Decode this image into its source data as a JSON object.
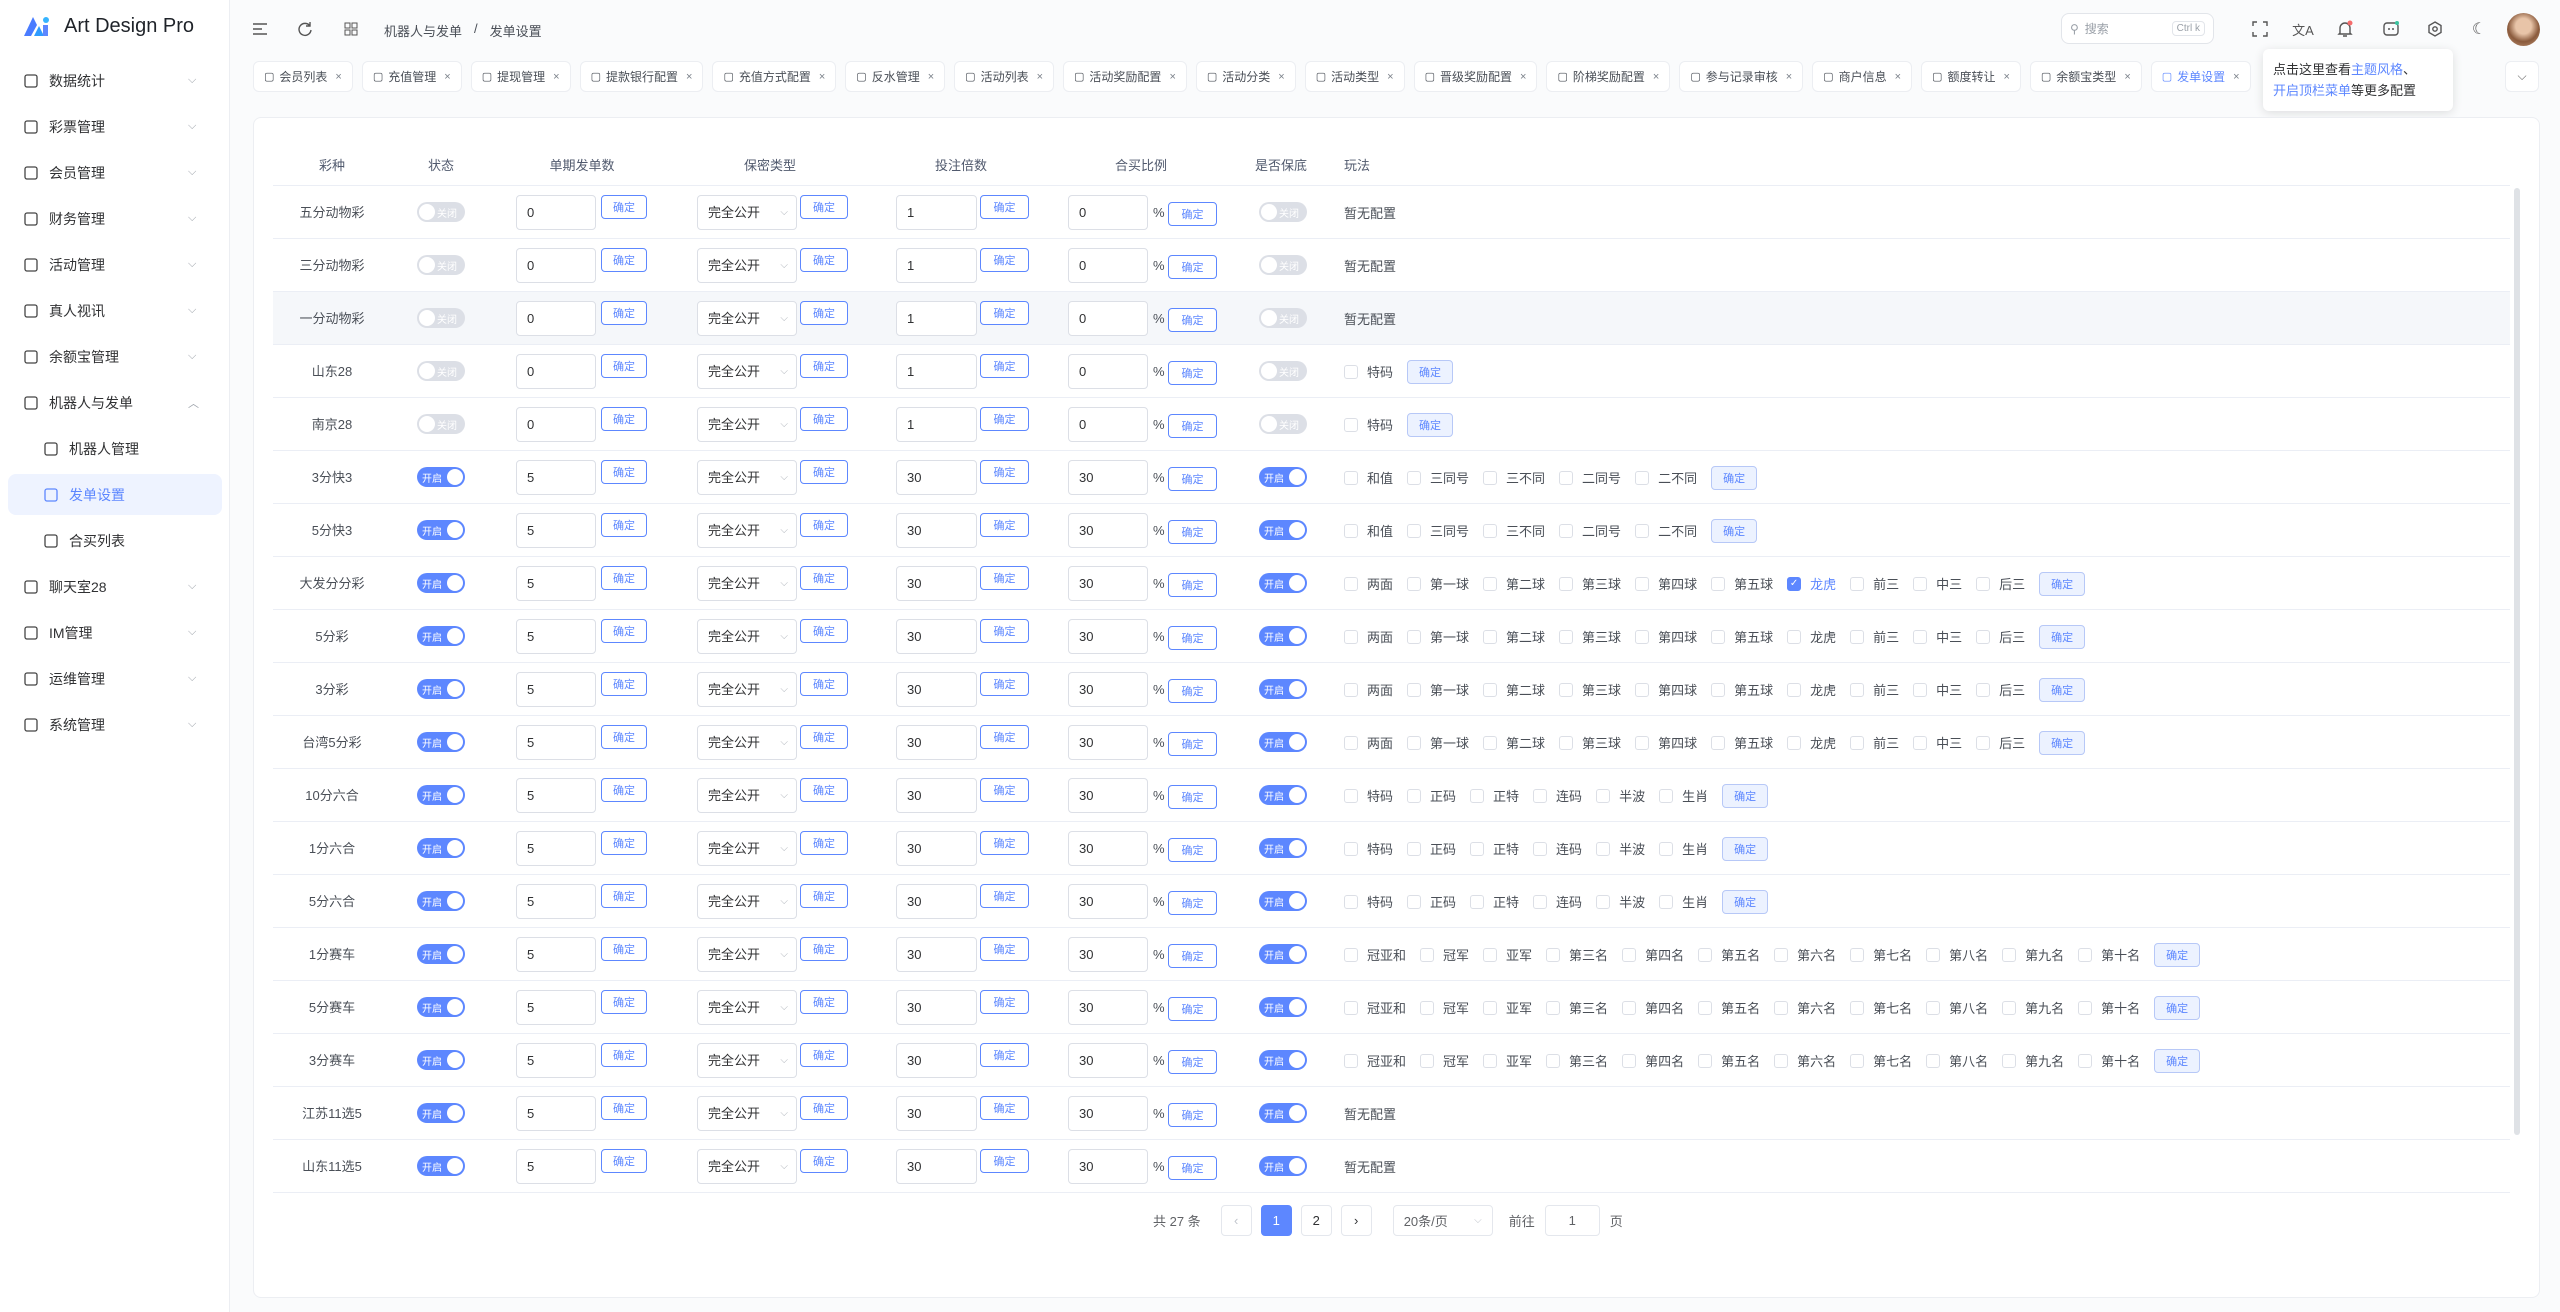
{
  "app": {
    "title": "Art Design Pro",
    "primary_color": "#5d87ff"
  },
  "sidebar": {
    "items": [
      {
        "label": "数据统计",
        "icon": "chart-icon",
        "chevron": "⌵"
      },
      {
        "label": "彩票管理",
        "icon": "ticket-icon",
        "chevron": "⌵"
      },
      {
        "label": "会员管理",
        "icon": "user-icon",
        "chevron": "⌵"
      },
      {
        "label": "财务管理",
        "icon": "wallet-icon",
        "chevron": "⌵"
      },
      {
        "label": "活动管理",
        "icon": "gift-icon",
        "chevron": "⌵"
      },
      {
        "label": "真人视讯",
        "icon": "gamepad-icon",
        "chevron": "⌵"
      },
      {
        "label": "余额宝管理",
        "icon": "safe-icon",
        "chevron": "⌵"
      },
      {
        "label": "机器人与发单",
        "icon": "robot-icon",
        "chevron": "︿",
        "expanded": true
      },
      {
        "label": "机器人管理",
        "icon": "gear-icon",
        "sub": true
      },
      {
        "label": "发单设置",
        "icon": "settings-list-icon",
        "sub": true,
        "active": true
      },
      {
        "label": "合买列表",
        "icon": "document-icon",
        "sub": true
      },
      {
        "label": "聊天室28",
        "icon": "chat-bot-icon",
        "chevron": "⌵"
      },
      {
        "label": "IM管理",
        "icon": "message-icon",
        "chevron": "⌵"
      },
      {
        "label": "运维管理",
        "icon": "tools-icon",
        "chevron": "⌵"
      },
      {
        "label": "系统管理",
        "icon": "user-icon",
        "chevron": "⌵"
      }
    ]
  },
  "header": {
    "breadcrumb": [
      "机器人与发单",
      "/",
      "发单设置"
    ],
    "search_placeholder": "搜索",
    "search_shortcut": "Ctrl k"
  },
  "tabs": [
    {
      "label": "会员列表",
      "icon": "user-icon"
    },
    {
      "label": "充值管理",
      "icon": "recharge-icon"
    },
    {
      "label": "提现管理",
      "icon": "withdraw-icon"
    },
    {
      "label": "提款银行配置",
      "icon": "bank-icon"
    },
    {
      "label": "充值方式配置",
      "icon": "gear-icon"
    },
    {
      "label": "反水管理",
      "icon": "rebate-icon"
    },
    {
      "label": "活动列表",
      "icon": "list-icon"
    },
    {
      "label": "活动奖励配置",
      "icon": "gift-icon"
    },
    {
      "label": "活动分类",
      "icon": "settings-list-icon"
    },
    {
      "label": "活动类型",
      "icon": "settings-list-icon"
    },
    {
      "label": "晋级奖励配置",
      "icon": "crown-icon"
    },
    {
      "label": "阶梯奖励配置",
      "icon": "ladder-icon"
    },
    {
      "label": "参与记录审核",
      "icon": "file-icon"
    },
    {
      "label": "商户信息",
      "icon": "shop-icon"
    },
    {
      "label": "额度转让",
      "icon": "transfer-icon"
    },
    {
      "label": "余额宝类型",
      "icon": "settings-list-icon"
    },
    {
      "label": "发单设置",
      "icon": "settings-list-icon",
      "active": true
    }
  ],
  "tab_close": "×",
  "tooltip": {
    "prefix": "点击这里查看",
    "link1": "主题风格",
    "sep": "、",
    "link2": "开启顶栏菜单",
    "suffix": "等更多配置"
  },
  "table": {
    "headers": [
      "彩种",
      "状态",
      "单期发单数",
      "保密类型",
      "投注倍数",
      "合买比例",
      "是否保底",
      "玩法"
    ],
    "confirm": "确定",
    "on_label": "开启",
    "off_label": "关闭",
    "percent": "%",
    "no_config": "暂无配置",
    "rows": [
      {
        "name": "五分动物彩",
        "status": false,
        "count": "0",
        "secrecy": "完全公开",
        "multiple": "1",
        "ratio": "0",
        "guarantee": false,
        "plays": [],
        "checked": []
      },
      {
        "name": "三分动物彩",
        "status": false,
        "count": "0",
        "secrecy": "完全公开",
        "multiple": "1",
        "ratio": "0",
        "guarantee": false,
        "plays": [],
        "checked": []
      },
      {
        "name": "一分动物彩",
        "status": false,
        "count": "0",
        "secrecy": "完全公开",
        "multiple": "1",
        "ratio": "0",
        "guarantee": false,
        "plays": [],
        "checked": [],
        "hover": true
      },
      {
        "name": "山东28",
        "status": false,
        "count": "0",
        "secrecy": "完全公开",
        "multiple": "1",
        "ratio": "0",
        "guarantee": false,
        "plays": [
          "特码"
        ],
        "checked": []
      },
      {
        "name": "南京28",
        "status": false,
        "count": "0",
        "secrecy": "完全公开",
        "multiple": "1",
        "ratio": "0",
        "guarantee": false,
        "plays": [
          "特码"
        ],
        "checked": []
      },
      {
        "name": "3分快3",
        "status": true,
        "count": "5",
        "secrecy": "完全公开",
        "multiple": "30",
        "ratio": "30",
        "guarantee": true,
        "plays": [
          "和值",
          "三同号",
          "三不同",
          "二同号",
          "二不同"
        ],
        "checked": []
      },
      {
        "name": "5分快3",
        "status": true,
        "count": "5",
        "secrecy": "完全公开",
        "multiple": "30",
        "ratio": "30",
        "guarantee": true,
        "plays": [
          "和值",
          "三同号",
          "三不同",
          "二同号",
          "二不同"
        ],
        "checked": []
      },
      {
        "name": "大发分分彩",
        "status": true,
        "count": "5",
        "secrecy": "完全公开",
        "multiple": "30",
        "ratio": "30",
        "guarantee": true,
        "plays": [
          "两面",
          "第一球",
          "第二球",
          "第三球",
          "第四球",
          "第五球",
          "龙虎",
          "前三",
          "中三",
          "后三"
        ],
        "checked": [
          "龙虎"
        ]
      },
      {
        "name": "5分彩",
        "status": true,
        "count": "5",
        "secrecy": "完全公开",
        "multiple": "30",
        "ratio": "30",
        "guarantee": true,
        "plays": [
          "两面",
          "第一球",
          "第二球",
          "第三球",
          "第四球",
          "第五球",
          "龙虎",
          "前三",
          "中三",
          "后三"
        ],
        "checked": []
      },
      {
        "name": "3分彩",
        "status": true,
        "count": "5",
        "secrecy": "完全公开",
        "multiple": "30",
        "ratio": "30",
        "guarantee": true,
        "plays": [
          "两面",
          "第一球",
          "第二球",
          "第三球",
          "第四球",
          "第五球",
          "龙虎",
          "前三",
          "中三",
          "后三"
        ],
        "checked": []
      },
      {
        "name": "台湾5分彩",
        "status": true,
        "count": "5",
        "secrecy": "完全公开",
        "multiple": "30",
        "ratio": "30",
        "guarantee": true,
        "plays": [
          "两面",
          "第一球",
          "第二球",
          "第三球",
          "第四球",
          "第五球",
          "龙虎",
          "前三",
          "中三",
          "后三"
        ],
        "checked": []
      },
      {
        "name": "10分六合",
        "status": true,
        "count": "5",
        "secrecy": "完全公开",
        "multiple": "30",
        "ratio": "30",
        "guarantee": true,
        "plays": [
          "特码",
          "正码",
          "正特",
          "连码",
          "半波",
          "生肖"
        ],
        "checked": []
      },
      {
        "name": "1分六合",
        "status": true,
        "count": "5",
        "secrecy": "完全公开",
        "multiple": "30",
        "ratio": "30",
        "guarantee": true,
        "plays": [
          "特码",
          "正码",
          "正特",
          "连码",
          "半波",
          "生肖"
        ],
        "checked": []
      },
      {
        "name": "5分六合",
        "status": true,
        "count": "5",
        "secrecy": "完全公开",
        "multiple": "30",
        "ratio": "30",
        "guarantee": true,
        "plays": [
          "特码",
          "正码",
          "正特",
          "连码",
          "半波",
          "生肖"
        ],
        "checked": []
      },
      {
        "name": "1分赛车",
        "status": true,
        "count": "5",
        "secrecy": "完全公开",
        "multiple": "30",
        "ratio": "30",
        "guarantee": true,
        "plays": [
          "冠亚和",
          "冠军",
          "亚军",
          "第三名",
          "第四名",
          "第五名",
          "第六名",
          "第七名",
          "第八名",
          "第九名",
          "第十名"
        ],
        "checked": []
      },
      {
        "name": "5分赛车",
        "status": true,
        "count": "5",
        "secrecy": "完全公开",
        "multiple": "30",
        "ratio": "30",
        "guarantee": true,
        "plays": [
          "冠亚和",
          "冠军",
          "亚军",
          "第三名",
          "第四名",
          "第五名",
          "第六名",
          "第七名",
          "第八名",
          "第九名",
          "第十名"
        ],
        "checked": []
      },
      {
        "name": "3分赛车",
        "status": true,
        "count": "5",
        "secrecy": "完全公开",
        "multiple": "30",
        "ratio": "30",
        "guarantee": true,
        "plays": [
          "冠亚和",
          "冠军",
          "亚军",
          "第三名",
          "第四名",
          "第五名",
          "第六名",
          "第七名",
          "第八名",
          "第九名",
          "第十名"
        ],
        "checked": []
      },
      {
        "name": "江苏11选5",
        "status": true,
        "count": "5",
        "secrecy": "完全公开",
        "multiple": "30",
        "ratio": "30",
        "guarantee": true,
        "plays": [],
        "checked": []
      },
      {
        "name": "山东11选5",
        "status": true,
        "count": "5",
        "secrecy": "完全公开",
        "multiple": "30",
        "ratio": "30",
        "guarantee": true,
        "plays": [],
        "checked": []
      }
    ]
  },
  "pagination": {
    "total_text": "共 27 条",
    "pages": [
      "1",
      "2"
    ],
    "current": "1",
    "prev": "‹",
    "next": "›",
    "page_size": "20条/页",
    "goto_label": "前往",
    "goto_value": "1",
    "page_suffix": "页"
  }
}
